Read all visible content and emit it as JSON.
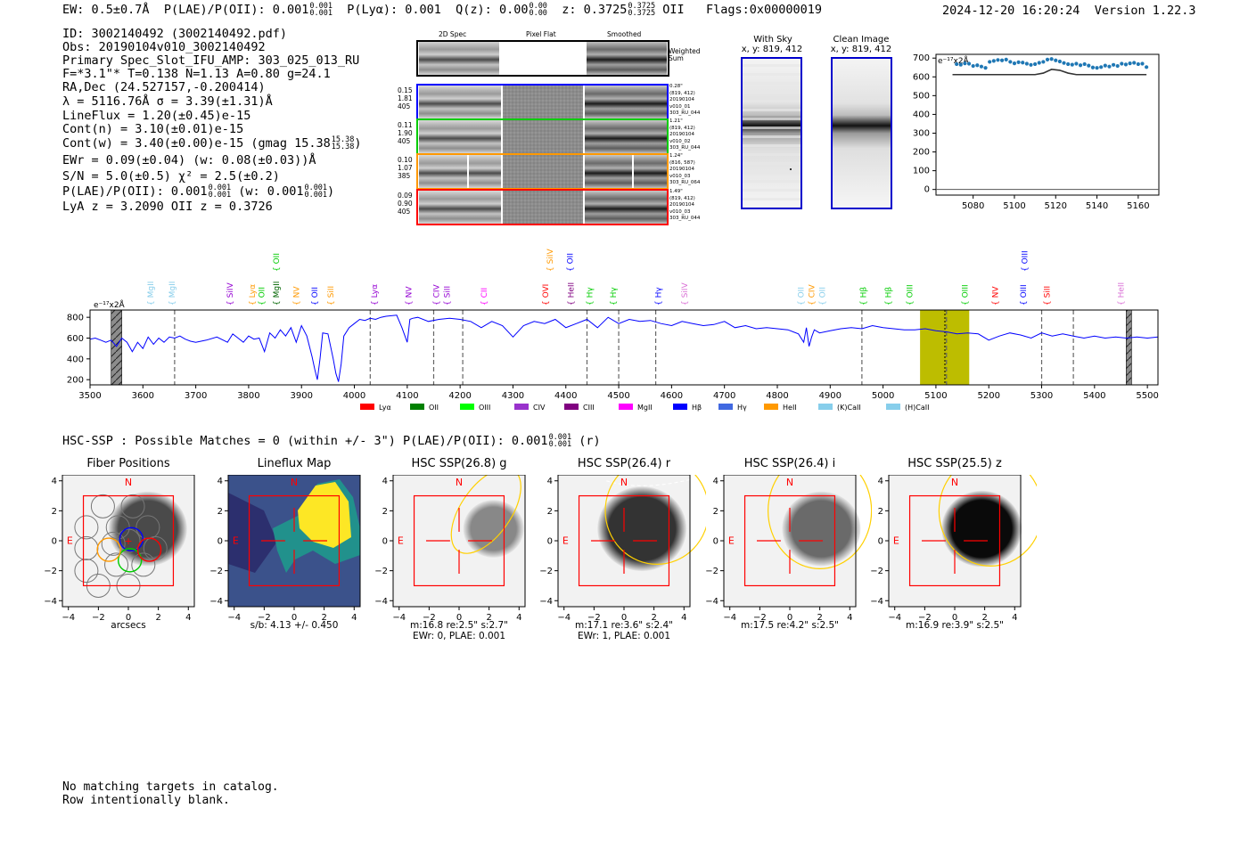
{
  "header": {
    "ew": "EW: 0.5±0.7Å",
    "plae_label": "P(LAE)/P(OII): 0.001",
    "plae_hi": "0.001",
    "plae_lo": "0.001",
    "plya": "P(Lyα): 0.001",
    "qz_label": "Q(z): 0.00",
    "qz_hi": "0.00",
    "qz_lo": "0.00",
    "z_label": "z: 0.3725",
    "z_hi": "0.3725",
    "z_lo": "0.3725",
    "z_line": "OII",
    "flags": "Flags:0x00000019",
    "datetime": "2024-12-20 16:20:24",
    "version": "Version 1.22.3"
  },
  "info": {
    "id": "ID: 3002140492 (3002140492.pdf)",
    "obs": "Obs: 20190104v010_3002140492",
    "slot": "Primary Spec_Slot_IFU_AMP: 303_025_013_RU",
    "params": "F=*3.1\"*  T=0.138  N=1.13  A=0.80  g=24.1",
    "radec": "RA,Dec (24.527157,-0.200414)",
    "lambda": "λ = 5116.76Å   σ = 3.39(±1.31)Å",
    "lineflux": "LineFlux = 1.20(±0.45)e-15",
    "contn": "Cont(n) = 3.10(±0.01)e-15",
    "contw": "Cont(w) = 3.40(±0.00)e-15 (gmag 15.38",
    "contw_hi": "15.38",
    "contw_lo": "15.38",
    "contw_end": ")",
    "ewr": "EWr = 0.09(±0.04) (w: 0.08(±0.03))Å",
    "sn": "S/N = 5.0(±0.5)  χ² = 2.5(±0.2)",
    "plae": "P(LAE)/P(OII): 0.001",
    "plae_hi": "0.001",
    "plae_lo": "0.001",
    "plae_w": "(w: 0.001",
    "plae_w_hi": "0.001",
    "plae_w_lo": "0.001",
    "plae_w_end": ")",
    "redshifts": "LyA z = 3.2090   OII z = 0.3726"
  },
  "cutouts": {
    "col_2d": "2D Spec",
    "col_flat": "Pixel Flat",
    "col_smooth": "Smoothed",
    "weighted": "Weighted Sum",
    "rows": [
      {
        "color": "#0000ff",
        "l1": "0.15",
        "l2": "1.81",
        "l3": "405",
        "r1": "0.28\"",
        "r2": "(819, 412)",
        "r3": "20190104",
        "r4": "v010_01",
        "r5": "303_RU_044"
      },
      {
        "color": "#00cc00",
        "l1": "0.11",
        "l2": "1.90",
        "l3": "405",
        "r1": "1.21\"",
        "r2": "(819, 412)",
        "r3": "20190104",
        "r4": "v010_02",
        "r5": "303_RU_044"
      },
      {
        "color": "#ff9900",
        "l1": "0.10",
        "l2": "1.07",
        "l3": "385",
        "r1": "1.24\"",
        "r2": "(816, 587)",
        "r3": "20190104",
        "r4": "v010_03",
        "r5": "303_RU_064"
      },
      {
        "color": "#ff0000",
        "l1": "0.09",
        "l2": "0.90",
        "l3": "405",
        "r1": "1.49\"",
        "r2": "(819, 412)",
        "r3": "20190104",
        "r4": "v010_03",
        "r5": "303_RU_044"
      }
    ],
    "with_sky": "With Sky",
    "clean_image": "Clean Image",
    "coords": "x, y: 819, 412"
  },
  "chart_data": [
    {
      "type": "scatter",
      "title": "",
      "ylabel_note": "e⁻¹⁷x2Å",
      "x": [
        5072,
        5074,
        5076,
        5078,
        5080,
        5082,
        5084,
        5086,
        5088,
        5090,
        5092,
        5094,
        5096,
        5098,
        5100,
        5102,
        5104,
        5106,
        5108,
        5110,
        5112,
        5114,
        5116,
        5118,
        5120,
        5122,
        5124,
        5126,
        5128,
        5130,
        5132,
        5134,
        5136,
        5138,
        5140,
        5142,
        5144,
        5146,
        5148,
        5150,
        5152,
        5154,
        5156,
        5158,
        5160,
        5162,
        5164
      ],
      "values": [
        668,
        665,
        672,
        670,
        658,
        662,
        655,
        648,
        680,
        685,
        690,
        688,
        692,
        680,
        672,
        678,
        676,
        670,
        664,
        668,
        675,
        680,
        692,
        695,
        688,
        682,
        674,
        668,
        665,
        670,
        662,
        668,
        660,
        650,
        648,
        652,
        660,
        655,
        664,
        658,
        670,
        666,
        672,
        675,
        668,
        670,
        652
      ],
      "model_x": [
        5070,
        5110,
        5114,
        5118,
        5122,
        5126,
        5130,
        5164
      ],
      "model_y": [
        612,
        612,
        620,
        640,
        635,
        620,
        612,
        612
      ],
      "ylim": [
        -30,
        720
      ],
      "xlim": [
        5062,
        5170
      ],
      "xticks": [
        5080,
        5100,
        5120,
        5140,
        5160
      ],
      "yticks": [
        0,
        100,
        200,
        300,
        400,
        500,
        600,
        700
      ]
    },
    {
      "type": "line",
      "title": "",
      "ylabel_note": "e⁻¹⁷x2Å",
      "xlim": [
        3500,
        5520
      ],
      "ylim": [
        150,
        870
      ],
      "xticks": [
        3500,
        3600,
        3700,
        3800,
        3900,
        4000,
        4100,
        4200,
        4300,
        4400,
        4500,
        4600,
        4700,
        4800,
        4900,
        5000,
        5100,
        5200,
        5300,
        5400,
        5500
      ],
      "yticks": [
        200,
        400,
        600,
        800
      ],
      "spectrum_x": [
        3500,
        3510,
        3520,
        3530,
        3540,
        3550,
        3560,
        3570,
        3580,
        3590,
        3600,
        3610,
        3620,
        3630,
        3640,
        3650,
        3660,
        3670,
        3680,
        3690,
        3700,
        3720,
        3740,
        3760,
        3770,
        3780,
        3790,
        3800,
        3810,
        3820,
        3830,
        3840,
        3850,
        3860,
        3870,
        3880,
        3890,
        3900,
        3910,
        3920,
        3925,
        3930,
        3935,
        3940,
        3950,
        3960,
        3965,
        3970,
        3975,
        3980,
        3990,
        4000,
        4010,
        4020,
        4030,
        4040,
        4050,
        4060,
        4080,
        4090,
        4100,
        4102,
        4105,
        4110,
        4120,
        4140,
        4160,
        4180,
        4200,
        4220,
        4240,
        4260,
        4280,
        4300,
        4320,
        4340,
        4360,
        4380,
        4400,
        4420,
        4440,
        4460,
        4480,
        4500,
        4520,
        4540,
        4560,
        4580,
        4600,
        4620,
        4640,
        4660,
        4680,
        4700,
        4720,
        4740,
        4760,
        4780,
        4800,
        4820,
        4840,
        4850,
        4855,
        4860,
        4865,
        4870,
        4880,
        4900,
        4920,
        4940,
        4960,
        4980,
        5000,
        5020,
        5040,
        5060,
        5080,
        5100,
        5120,
        5140,
        5160,
        5180,
        5200,
        5220,
        5240,
        5260,
        5280,
        5300,
        5320,
        5340,
        5360,
        5380,
        5400,
        5420,
        5440,
        5460,
        5480,
        5500,
        5520
      ],
      "spectrum_y": [
        590,
        600,
        580,
        560,
        580,
        520,
        600,
        560,
        470,
        560,
        500,
        610,
        540,
        600,
        560,
        610,
        600,
        620,
        590,
        570,
        560,
        580,
        610,
        560,
        640,
        600,
        560,
        620,
        590,
        600,
        470,
        650,
        600,
        680,
        620,
        700,
        560,
        720,
        620,
        420,
        300,
        200,
        400,
        650,
        640,
        400,
        260,
        180,
        350,
        620,
        700,
        740,
        780,
        770,
        790,
        780,
        800,
        810,
        820,
        700,
        560,
        640,
        780,
        790,
        800,
        760,
        780,
        790,
        780,
        760,
        700,
        760,
        720,
        610,
        720,
        760,
        740,
        780,
        700,
        740,
        780,
        700,
        800,
        740,
        780,
        760,
        770,
        740,
        720,
        760,
        740,
        720,
        730,
        760,
        700,
        720,
        690,
        700,
        690,
        680,
        640,
        560,
        700,
        520,
        610,
        680,
        650,
        670,
        690,
        700,
        690,
        720,
        700,
        690,
        680,
        680,
        690,
        670,
        660,
        640,
        650,
        640,
        580,
        620,
        650,
        630,
        600,
        650,
        620,
        640,
        620,
        600,
        620,
        600,
        610,
        600,
        610,
        600,
        610
      ],
      "line_marks": [
        {
          "x": 3615,
          "label": "MgII",
          "color": "#87ceeb"
        },
        {
          "x": 3655,
          "label": "MgII",
          "color": "#87ceeb"
        },
        {
          "x": 3765,
          "label": "SiIV",
          "color": "#9400d3"
        },
        {
          "x": 3807,
          "label": "Lyα",
          "color": "#ff9900"
        },
        {
          "x": 3825,
          "label": "OII",
          "color": "#00cc00"
        },
        {
          "x": 3852,
          "label": "MgII",
          "color": "#006400"
        },
        {
          "x": 3890,
          "label": "NV",
          "color": "#ff9900"
        },
        {
          "x": 3925,
          "label": "OII",
          "color": "#0000ff"
        },
        {
          "x": 3955,
          "label": "SiII",
          "color": "#ff9900"
        },
        {
          "x": 4038,
          "label": "Lyα",
          "color": "#9400d3"
        },
        {
          "x": 4103,
          "label": "NV",
          "color": "#9400d3"
        },
        {
          "x": 4155,
          "label": "CIV",
          "color": "#9400d3"
        },
        {
          "x": 4175,
          "label": "SiII",
          "color": "#9400d3"
        },
        {
          "x": 4245,
          "label": "CII",
          "color": "#ff00ff"
        },
        {
          "x": 4362,
          "label": "OVI",
          "color": "#ff0000"
        },
        {
          "x": 4410,
          "label": "HeII",
          "color": "#800080"
        },
        {
          "x": 4445,
          "label": "Hγ",
          "color": "#00cc00"
        },
        {
          "x": 4490,
          "label": "Hγ",
          "color": "#00cc00"
        },
        {
          "x": 4575,
          "label": "Hγ",
          "color": "#0000ff"
        },
        {
          "x": 4625,
          "label": "SiIV",
          "color": "#da70d6"
        },
        {
          "x": 4845,
          "label": "OII",
          "color": "#87ceeb"
        },
        {
          "x": 4865,
          "label": "CIV",
          "color": "#ff9900"
        },
        {
          "x": 4885,
          "label": "OII",
          "color": "#87ceeb"
        },
        {
          "x": 4963,
          "label": "Hβ",
          "color": "#00cc00"
        },
        {
          "x": 5010,
          "label": "Hβ",
          "color": "#00cc00"
        },
        {
          "x": 5050,
          "label": "OIII",
          "color": "#00cc00"
        },
        {
          "x": 5155,
          "label": "OIII",
          "color": "#00cc00"
        },
        {
          "x": 5212,
          "label": "NV",
          "color": "#ff0000"
        },
        {
          "x": 5265,
          "label": "OIII",
          "color": "#0000ff"
        },
        {
          "x": 5310,
          "label": "SiII",
          "color": "#ff0000"
        },
        {
          "x": 5450,
          "label": "HeII",
          "color": "#da70d6"
        }
      ],
      "upper_marks": [
        {
          "x": 3852,
          "label": "OII",
          "color": "#00cc00"
        },
        {
          "x": 4370,
          "label": "SiIV",
          "color": "#ff9900"
        },
        {
          "x": 4408,
          "label": "OII",
          "color": "#0000ff"
        },
        {
          "x": 5268,
          "label": "OIII",
          "color": "#0000ff"
        }
      ],
      "dashed_lines": [
        3660,
        4030,
        4150,
        4205,
        4440,
        4500,
        4570,
        4960,
        5120,
        5300,
        5360
      ],
      "highlight": [
        5070,
        5163
      ],
      "hatched": [
        [
          3540,
          3560
        ],
        [
          5460,
          5470
        ]
      ],
      "legend": [
        {
          "label": "Lyα",
          "color": "#ff0000"
        },
        {
          "label": "OII",
          "color": "#008000"
        },
        {
          "label": "OIII",
          "color": "#00ff00"
        },
        {
          "label": "CIV",
          "color": "#9932cc"
        },
        {
          "label": "CIII",
          "color": "#800080"
        },
        {
          "label": "MgII",
          "color": "#ff00ff"
        },
        {
          "label": "Hβ",
          "color": "#0000ff"
        },
        {
          "label": "Hγ",
          "color": "#4169e1"
        },
        {
          "label": "HeII",
          "color": "#ff9900"
        },
        {
          "label": "(K)CaII",
          "color": "#87ceeb"
        },
        {
          "label": "(H)CaII",
          "color": "#87ceeb"
        }
      ]
    }
  ],
  "hsc": {
    "matches": "HSC-SSP : Possible Matches = 0 (within +/- 3\")  P(LAE)/P(OII): 0.001",
    "m_hi": "0.001",
    "m_lo": "0.001",
    "m_end": "(r)",
    "n_label": "N",
    "e_label": "E",
    "xticks": [
      "−4",
      "−2",
      "0",
      "2",
      "4"
    ],
    "yticks": [
      "4",
      "2",
      "0",
      "−2",
      "−4"
    ],
    "panels": [
      {
        "title": "Fiber Positions",
        "cap1": "arcsecs",
        "cap2": ""
      },
      {
        "title": "Lineflux Map",
        "cap1": "s/b: 4.13 +/- 0.450",
        "cap2": ""
      },
      {
        "title": "HSC SSP(26.8) g",
        "cap1": "m:16.8  re:2.5\"  s:2.7\"",
        "cap2": "EWr: 0, PLAE: 0.001"
      },
      {
        "title": "HSC SSP(26.4) r",
        "cap1": "m:17.1  re:3.6\"  s:2.4\"",
        "cap2": "EWr: 1, PLAE: 0.001"
      },
      {
        "title": "HSC SSP(26.4) i",
        "cap1": "m:17.5  re:4.2\"  s:2.5\"",
        "cap2": ""
      },
      {
        "title": "HSC SSP(25.5) z",
        "cap1": "m:16.9  re:3.9\"  s:2.5\"",
        "cap2": ""
      }
    ]
  },
  "footer": {
    "line1": "No matching targets in catalog.",
    "line2": "Row intentionally blank."
  }
}
